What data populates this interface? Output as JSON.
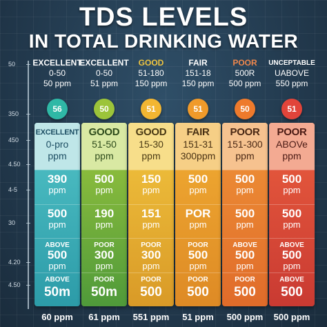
{
  "title": {
    "line1": "TDS LEVELS",
    "line2": "IN TOTAL DRINKING WATER"
  },
  "y_ticks": [
    "50",
    "350",
    "450",
    "4.50",
    "4-5",
    "30",
    "4.20",
    "4.50"
  ],
  "headers": [
    {
      "label": "EXCELLENT",
      "range": "0-50",
      "unit": "50 ppm",
      "color": "#ffffff"
    },
    {
      "label": "EXCELLENT",
      "range": "0-50",
      "unit": "51 ppm",
      "color": "#ffffff"
    },
    {
      "label": "GOOD",
      "range": "51-180",
      "unit": "150 ppm",
      "color": "#f0c541"
    },
    {
      "label": "FAIR",
      "range": "151-18",
      "unit": "150 ppm",
      "color": "#ffffff"
    },
    {
      "label": "POOR",
      "range": "500R",
      "unit": "500 ppm",
      "color": "#f0884d"
    },
    {
      "label": "UNCEPTABLE",
      "range": "UABOVE",
      "unit": "550 ppm",
      "color": "#ffffff"
    }
  ],
  "circles": [
    {
      "value": "56",
      "color": "#2fb8a6"
    },
    {
      "value": "50",
      "color": "#9cc43a"
    },
    {
      "value": "51",
      "color": "#f2b632"
    },
    {
      "value": "51",
      "color": "#f09a2a"
    },
    {
      "value": "50",
      "color": "#ee7a2c"
    },
    {
      "value": "51",
      "color": "#e1443a"
    }
  ],
  "columns": [
    {
      "label": "EXCELLENT",
      "range": "0-pro",
      "unit": "ppm",
      "top_bg": "#bfe6e8",
      "top_fg": "#1d4e63",
      "body_bg": "linear-gradient(#52c3c7, #2c9ba8)",
      "segments": [
        {
          "b": "390",
          "c": "ppm"
        },
        {
          "b": "500",
          "c": "ppm"
        },
        {
          "a": "ABOVE",
          "b": "500",
          "c": "ppm"
        },
        {
          "a": "ABOVE",
          "b": "50m",
          "big": true
        }
      ]
    },
    {
      "label": "GOOD",
      "range": "51-50",
      "unit": "ppm",
      "top_bg": "#d9e9a3",
      "top_fg": "#2f4c1c",
      "body_bg": "linear-gradient(#9dc63d, #4f9a3a)",
      "segments": [
        {
          "b": "500",
          "c": "ppm"
        },
        {
          "b": "190",
          "c": "ppm"
        },
        {
          "a": "POOR",
          "b": "300",
          "c": "ppm"
        },
        {
          "a": "POOR",
          "b": "50m",
          "big": true
        }
      ]
    },
    {
      "label": "GOOD",
      "range": "15-30",
      "unit": "ppm",
      "top_bg": "#f7de8a",
      "top_fg": "#4a3a14",
      "body_bg": "linear-gradient(#f2c53f, #d99a27)",
      "segments": [
        {
          "b": "150",
          "c": "ppm"
        },
        {
          "b": "151",
          "c": "ppm"
        },
        {
          "a": "POOR",
          "b": "300",
          "c": "ppm"
        },
        {
          "a": "POOR",
          "b": "500",
          "big": true
        }
      ]
    },
    {
      "label": "FAIR",
      "range": "151-31",
      "unit": "300ppm",
      "top_bg": "#f6cf86",
      "top_fg": "#4a3214",
      "body_bg": "linear-gradient(#f1ad33, #de8a25)",
      "segments": [
        {
          "b": "500",
          "c": "ppm"
        },
        {
          "b": "POR",
          "c": "ppm"
        },
        {
          "a": "POOR",
          "b": "500",
          "c": "ppm"
        },
        {
          "a": "POOR",
          "b": "500",
          "big": true
        }
      ]
    },
    {
      "label": "POOR",
      "range": "151-300",
      "unit": "ppm",
      "top_bg": "#f6c28f",
      "top_fg": "#4a2814",
      "body_bg": "linear-gradient(#ef9437, #e06b2a)",
      "segments": [
        {
          "b": "500",
          "c": "ppm"
        },
        {
          "b": "500",
          "c": "ppm"
        },
        {
          "a": "ABOVE",
          "b": "500",
          "c": "ppm"
        },
        {
          "a": "POOR",
          "b": "500",
          "big": true
        }
      ]
    },
    {
      "label": "POOR",
      "range": "ABOVe",
      "unit": "ppm",
      "top_bg": "#f3aa92",
      "top_fg": "#4a1a14",
      "body_bg": "linear-gradient(#ea5e3e, #c93a32)",
      "segments": [
        {
          "b": "500",
          "c": "ppm"
        },
        {
          "b": "500",
          "c": "ppm"
        },
        {
          "a": "ABOVE",
          "b": "500",
          "c": "ppm"
        },
        {
          "a": "ABOVE",
          "b": "500",
          "big": true
        }
      ]
    }
  ],
  "bottom_labels": [
    "60 ppm",
    "61 ppm",
    "551 ppm",
    "51 ppm",
    "500 ppm",
    "500 ppm"
  ]
}
